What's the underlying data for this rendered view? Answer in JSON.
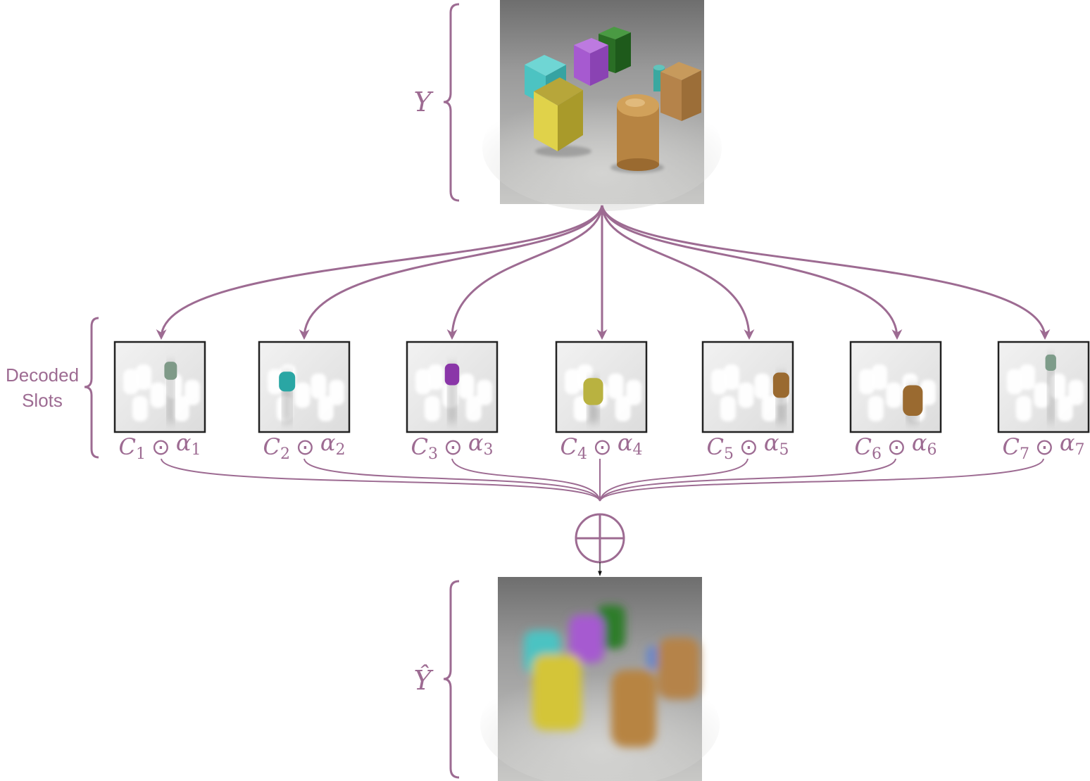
{
  "colors": {
    "accent": "#9d6b92",
    "frame": "#222222"
  },
  "input_image": {
    "label": "Y",
    "objects": [
      {
        "name": "cyan-cube",
        "color": "#4cc3c2"
      },
      {
        "name": "purple-cube",
        "color": "#a65ad0"
      },
      {
        "name": "green-cube",
        "color": "#2e7d2a"
      },
      {
        "name": "yellow-cube",
        "color": "#d4c538"
      },
      {
        "name": "brown-cylinder",
        "color": "#b78442"
      },
      {
        "name": "brown-cube",
        "color": "#b5834a"
      },
      {
        "name": "teal-cylinder",
        "color": "#3aa8a0"
      }
    ]
  },
  "slots_label": {
    "line1": "Decoded",
    "line2": "Slots"
  },
  "slots": [
    {
      "C": "C",
      "i": "1",
      "op": "⊙",
      "a": "α",
      "j": "1",
      "color": "#7f9a88"
    },
    {
      "C": "C",
      "i": "2",
      "op": "⊙",
      "a": "α",
      "j": "2",
      "color": "#2aa6a4"
    },
    {
      "C": "C",
      "i": "3",
      "op": "⊙",
      "a": "α",
      "j": "3",
      "color": "#8a36a8"
    },
    {
      "C": "C",
      "i": "4",
      "op": "⊙",
      "a": "α",
      "j": "4",
      "color": "#b9b240"
    },
    {
      "C": "C",
      "i": "5",
      "op": "⊙",
      "a": "α",
      "j": "5",
      "color": "#9a6a30"
    },
    {
      "C": "C",
      "i": "6",
      "op": "⊙",
      "a": "α",
      "j": "6",
      "color": "#9a6a30"
    },
    {
      "C": "C",
      "i": "7",
      "op": "⊙",
      "a": "α",
      "j": "7",
      "color": "#7e9c8a"
    }
  ],
  "output_image": {
    "label": "Ŷ"
  }
}
